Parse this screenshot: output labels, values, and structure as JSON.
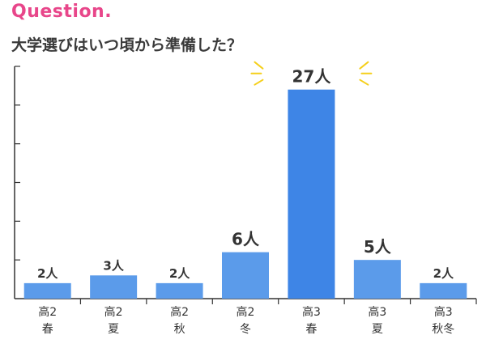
{
  "header": {
    "question": "Question.",
    "title": "大学選びはいつ頃から準備した？"
  },
  "colors": {
    "accent": "#e8468a",
    "bar": "#5b9bea",
    "bar_highlight": "#3e85e6",
    "axis": "#333333",
    "sparkle": "#f5cf1a"
  },
  "chart_data": {
    "type": "bar",
    "categories": [
      [
        "高2",
        "春"
      ],
      [
        "高2",
        "夏"
      ],
      [
        "高2",
        "秋"
      ],
      [
        "高2",
        "冬"
      ],
      [
        "高3",
        "春"
      ],
      [
        "高3",
        "夏"
      ],
      [
        "高3",
        "秋冬"
      ]
    ],
    "values": [
      2,
      3,
      2,
      6,
      27,
      5,
      2
    ],
    "data_labels": [
      "2人",
      "3人",
      "2人",
      "6人",
      "27人",
      "5人",
      "2人"
    ],
    "ylim": [
      0,
      30
    ],
    "y_tick_step": 5,
    "y_tick_labels_shown": false,
    "grid": false,
    "highlight_index": 4
  }
}
